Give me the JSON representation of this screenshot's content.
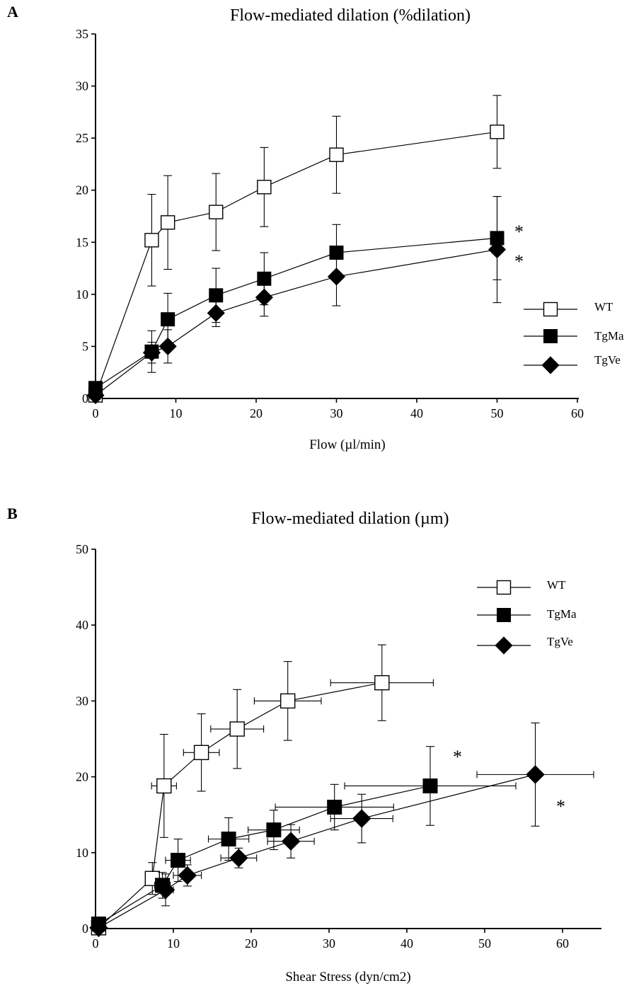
{
  "chart_data": [
    {
      "panel": "A",
      "type": "line",
      "title": "Flow-mediated dilation (%dilation)",
      "xlabel": "Flow (µl/min)",
      "ylabel": "",
      "xlim": [
        0,
        60
      ],
      "ylim": [
        0,
        35
      ],
      "xticks": [
        0,
        10,
        20,
        30,
        40,
        50,
        60
      ],
      "yticks": [
        0,
        5,
        10,
        15,
        20,
        25,
        30,
        35
      ],
      "legend_position": "right",
      "series": [
        {
          "name": "WT",
          "marker": "square-open",
          "points": [
            {
              "x": 0,
              "y": 0.3,
              "yerr": 0
            },
            {
              "x": 7,
              "y": 15.2,
              "yerr": 4.4
            },
            {
              "x": 9,
              "y": 16.9,
              "yerr": 4.5
            },
            {
              "x": 15,
              "y": 17.9,
              "yerr": 3.7
            },
            {
              "x": 21,
              "y": 20.3,
              "yerr": 3.8
            },
            {
              "x": 30,
              "y": 23.4,
              "yerr": 3.7
            },
            {
              "x": 50,
              "y": 25.6,
              "yerr": 3.5
            }
          ]
        },
        {
          "name": "TgMa",
          "marker": "square-filled",
          "points": [
            {
              "x": 0,
              "y": 1.0,
              "yerr": 0
            },
            {
              "x": 7,
              "y": 4.5,
              "yerr": 2.0
            },
            {
              "x": 9,
              "y": 7.6,
              "yerr": 2.5
            },
            {
              "x": 15,
              "y": 9.9,
              "yerr": 2.6
            },
            {
              "x": 21,
              "y": 11.5,
              "yerr": 2.5
            },
            {
              "x": 30,
              "y": 14.0,
              "yerr": 2.7
            },
            {
              "x": 50,
              "y": 15.4,
              "yerr": 4.0
            }
          ]
        },
        {
          "name": "TgVe",
          "marker": "diamond-filled",
          "points": [
            {
              "x": 0,
              "y": 0.3,
              "yerr": 0
            },
            {
              "x": 7,
              "y": 4.4,
              "yerr": 1.0
            },
            {
              "x": 9,
              "y": 5.0,
              "yerr": 1.6
            },
            {
              "x": 15,
              "y": 8.2,
              "yerr": 1.3
            },
            {
              "x": 21,
              "y": 9.7,
              "yerr": 1.8
            },
            {
              "x": 30,
              "y": 11.7,
              "yerr": 2.8
            },
            {
              "x": 50,
              "y": 14.3,
              "yerr": 5.1
            }
          ]
        }
      ],
      "annotations": [
        {
          "text": "*",
          "series": "TgMa"
        },
        {
          "text": "*",
          "series": "TgVe"
        }
      ]
    },
    {
      "panel": "B",
      "type": "line",
      "title": "Flow-mediated dilation (µm)",
      "xlabel": "Shear Stress (dyn/cm2)",
      "ylabel": "",
      "xlim": [
        0,
        65
      ],
      "ylim": [
        0,
        50
      ],
      "xticks": [
        0,
        10,
        20,
        30,
        40,
        50,
        60
      ],
      "yticks": [
        0,
        10,
        20,
        30,
        40,
        50
      ],
      "legend_position": "top-right",
      "series": [
        {
          "name": "WT",
          "marker": "square-open",
          "points": [
            {
              "x": 0.4,
              "y": 0.1,
              "xerr": 0,
              "yerr": 0
            },
            {
              "x": 7.3,
              "y": 6.6,
              "xerr": 0.6,
              "yerr": 2.1
            },
            {
              "x": 8.8,
              "y": 18.8,
              "xerr": 1.6,
              "yerr": 6.8
            },
            {
              "x": 13.6,
              "y": 23.2,
              "xerr": 2.3,
              "yerr": 5.1
            },
            {
              "x": 18.2,
              "y": 26.3,
              "xerr": 3.4,
              "yerr": 5.2
            },
            {
              "x": 24.7,
              "y": 30.0,
              "xerr": 4.3,
              "yerr": 5.2
            },
            {
              "x": 36.8,
              "y": 32.4,
              "xerr": 6.6,
              "yerr": 5.0
            }
          ]
        },
        {
          "name": "TgMa",
          "marker": "square-filled",
          "points": [
            {
              "x": 0.4,
              "y": 0.6,
              "xerr": 0,
              "yerr": 0
            },
            {
              "x": 8.6,
              "y": 5.7,
              "xerr": 1.0,
              "yerr": 1.7
            },
            {
              "x": 10.6,
              "y": 9.0,
              "xerr": 1.6,
              "yerr": 2.8
            },
            {
              "x": 17.1,
              "y": 11.8,
              "xerr": 2.6,
              "yerr": 2.8
            },
            {
              "x": 22.9,
              "y": 13.0,
              "xerr": 3.3,
              "yerr": 2.6
            },
            {
              "x": 30.7,
              "y": 16.0,
              "xerr": 7.6,
              "yerr": 3.0
            },
            {
              "x": 43.0,
              "y": 18.8,
              "xerr": 11.0,
              "yerr": 5.2
            }
          ]
        },
        {
          "name": "TgVe",
          "marker": "diamond-filled",
          "points": [
            {
              "x": 0.4,
              "y": 0.1,
              "xerr": 0,
              "yerr": 0
            },
            {
              "x": 9.0,
              "y": 5.1,
              "xerr": 1.0,
              "yerr": 2.1
            },
            {
              "x": 11.8,
              "y": 7.0,
              "xerr": 1.8,
              "yerr": 1.4
            },
            {
              "x": 18.4,
              "y": 9.3,
              "xerr": 2.3,
              "yerr": 1.3
            },
            {
              "x": 25.1,
              "y": 11.5,
              "xerr": 3.0,
              "yerr": 2.2
            },
            {
              "x": 34.2,
              "y": 14.5,
              "xerr": 4.0,
              "yerr": 3.2
            },
            {
              "x": 56.5,
              "y": 20.3,
              "xerr": 7.5,
              "yerr": 6.8
            }
          ]
        }
      ],
      "annotations": [
        {
          "text": "*",
          "series": "TgMa"
        },
        {
          "text": "*",
          "series": "TgVe"
        }
      ]
    }
  ]
}
